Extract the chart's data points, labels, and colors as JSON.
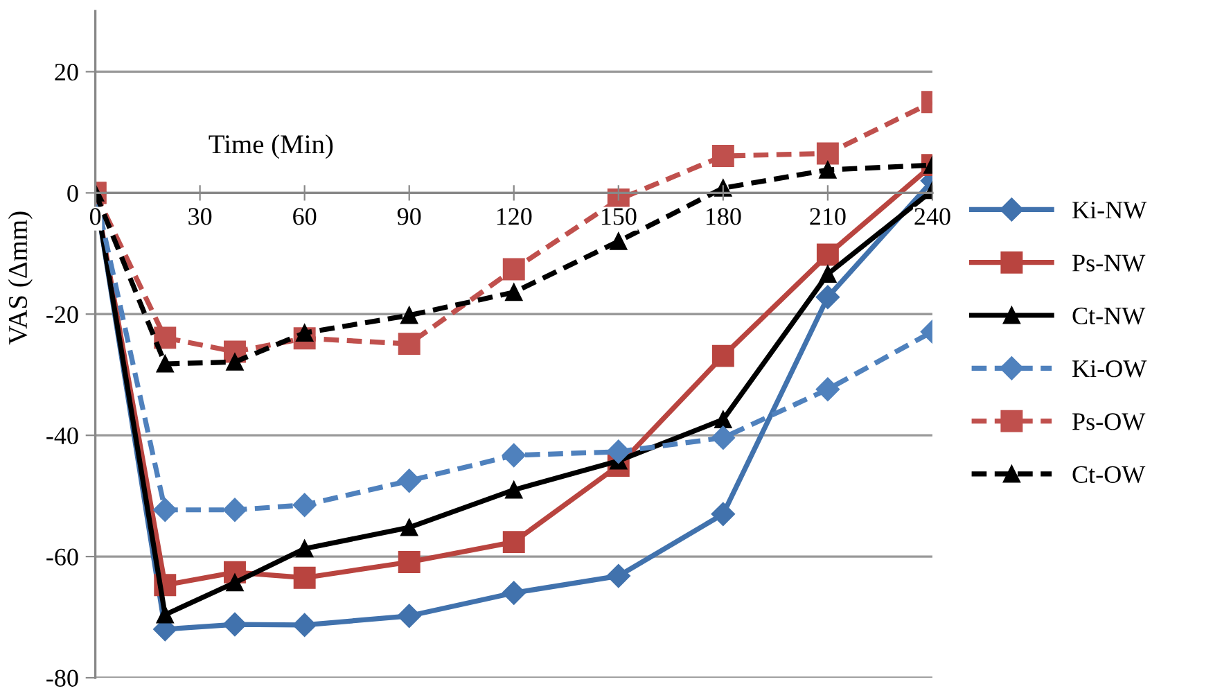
{
  "chart_data": {
    "type": "line",
    "xlabel": "Time (Min)",
    "ylabel": "VAS (Δmm)",
    "x": [
      0,
      20,
      40,
      60,
      90,
      120,
      150,
      180,
      210,
      240
    ],
    "xlim": [
      0,
      240
    ],
    "xticks": [
      0,
      30,
      60,
      90,
      120,
      150,
      180,
      210,
      240
    ],
    "ylim": [
      -80,
      30
    ],
    "yticks": [
      -80,
      -60,
      -40,
      -20,
      0,
      20
    ],
    "grid": "y",
    "legend": "right",
    "series": [
      {
        "name": "Ki-NW",
        "color": "#4172ad",
        "marker": "diamond",
        "line_style": "solid",
        "values": [
          0,
          -72,
          -71.2,
          -71.3,
          -69.8,
          -66,
          -63.2,
          -53,
          -17.2,
          2
        ]
      },
      {
        "name": "Ps-NW",
        "color": "#b9443f",
        "marker": "square",
        "line_style": "solid",
        "values": [
          0,
          -64.7,
          -62.6,
          -63.5,
          -60.9,
          -57.6,
          -45,
          -26.9,
          -10.2,
          4.6
        ]
      },
      {
        "name": "Ct-NW",
        "color": "#000000",
        "marker": "triangle",
        "line_style": "solid",
        "values": [
          0,
          -69.6,
          -64.3,
          -58.7,
          -55.2,
          -49,
          -44.2,
          -37.4,
          -13.4,
          0.4
        ]
      },
      {
        "name": "Ki-OW",
        "color": "#4f81bd",
        "marker": "diamond",
        "line_style": "dashed",
        "values": [
          0,
          -52.3,
          -52.3,
          -51.5,
          -47.5,
          -43.3,
          -42.7,
          -40.4,
          -32.4,
          -22.9
        ]
      },
      {
        "name": "Ps-OW",
        "color": "#c0504d",
        "marker": "square",
        "line_style": "dashed",
        "values": [
          0,
          -23.9,
          -26.2,
          -24,
          -24.9,
          -12.6,
          -1.1,
          6.1,
          6.5,
          15
        ]
      },
      {
        "name": "Ct-OW",
        "color": "#000000",
        "marker": "triangle",
        "line_style": "dashed",
        "values": [
          0,
          -28.2,
          -27.9,
          -23.1,
          -20.2,
          -16.4,
          -8,
          0.8,
          3.8,
          4.6
        ]
      }
    ]
  }
}
